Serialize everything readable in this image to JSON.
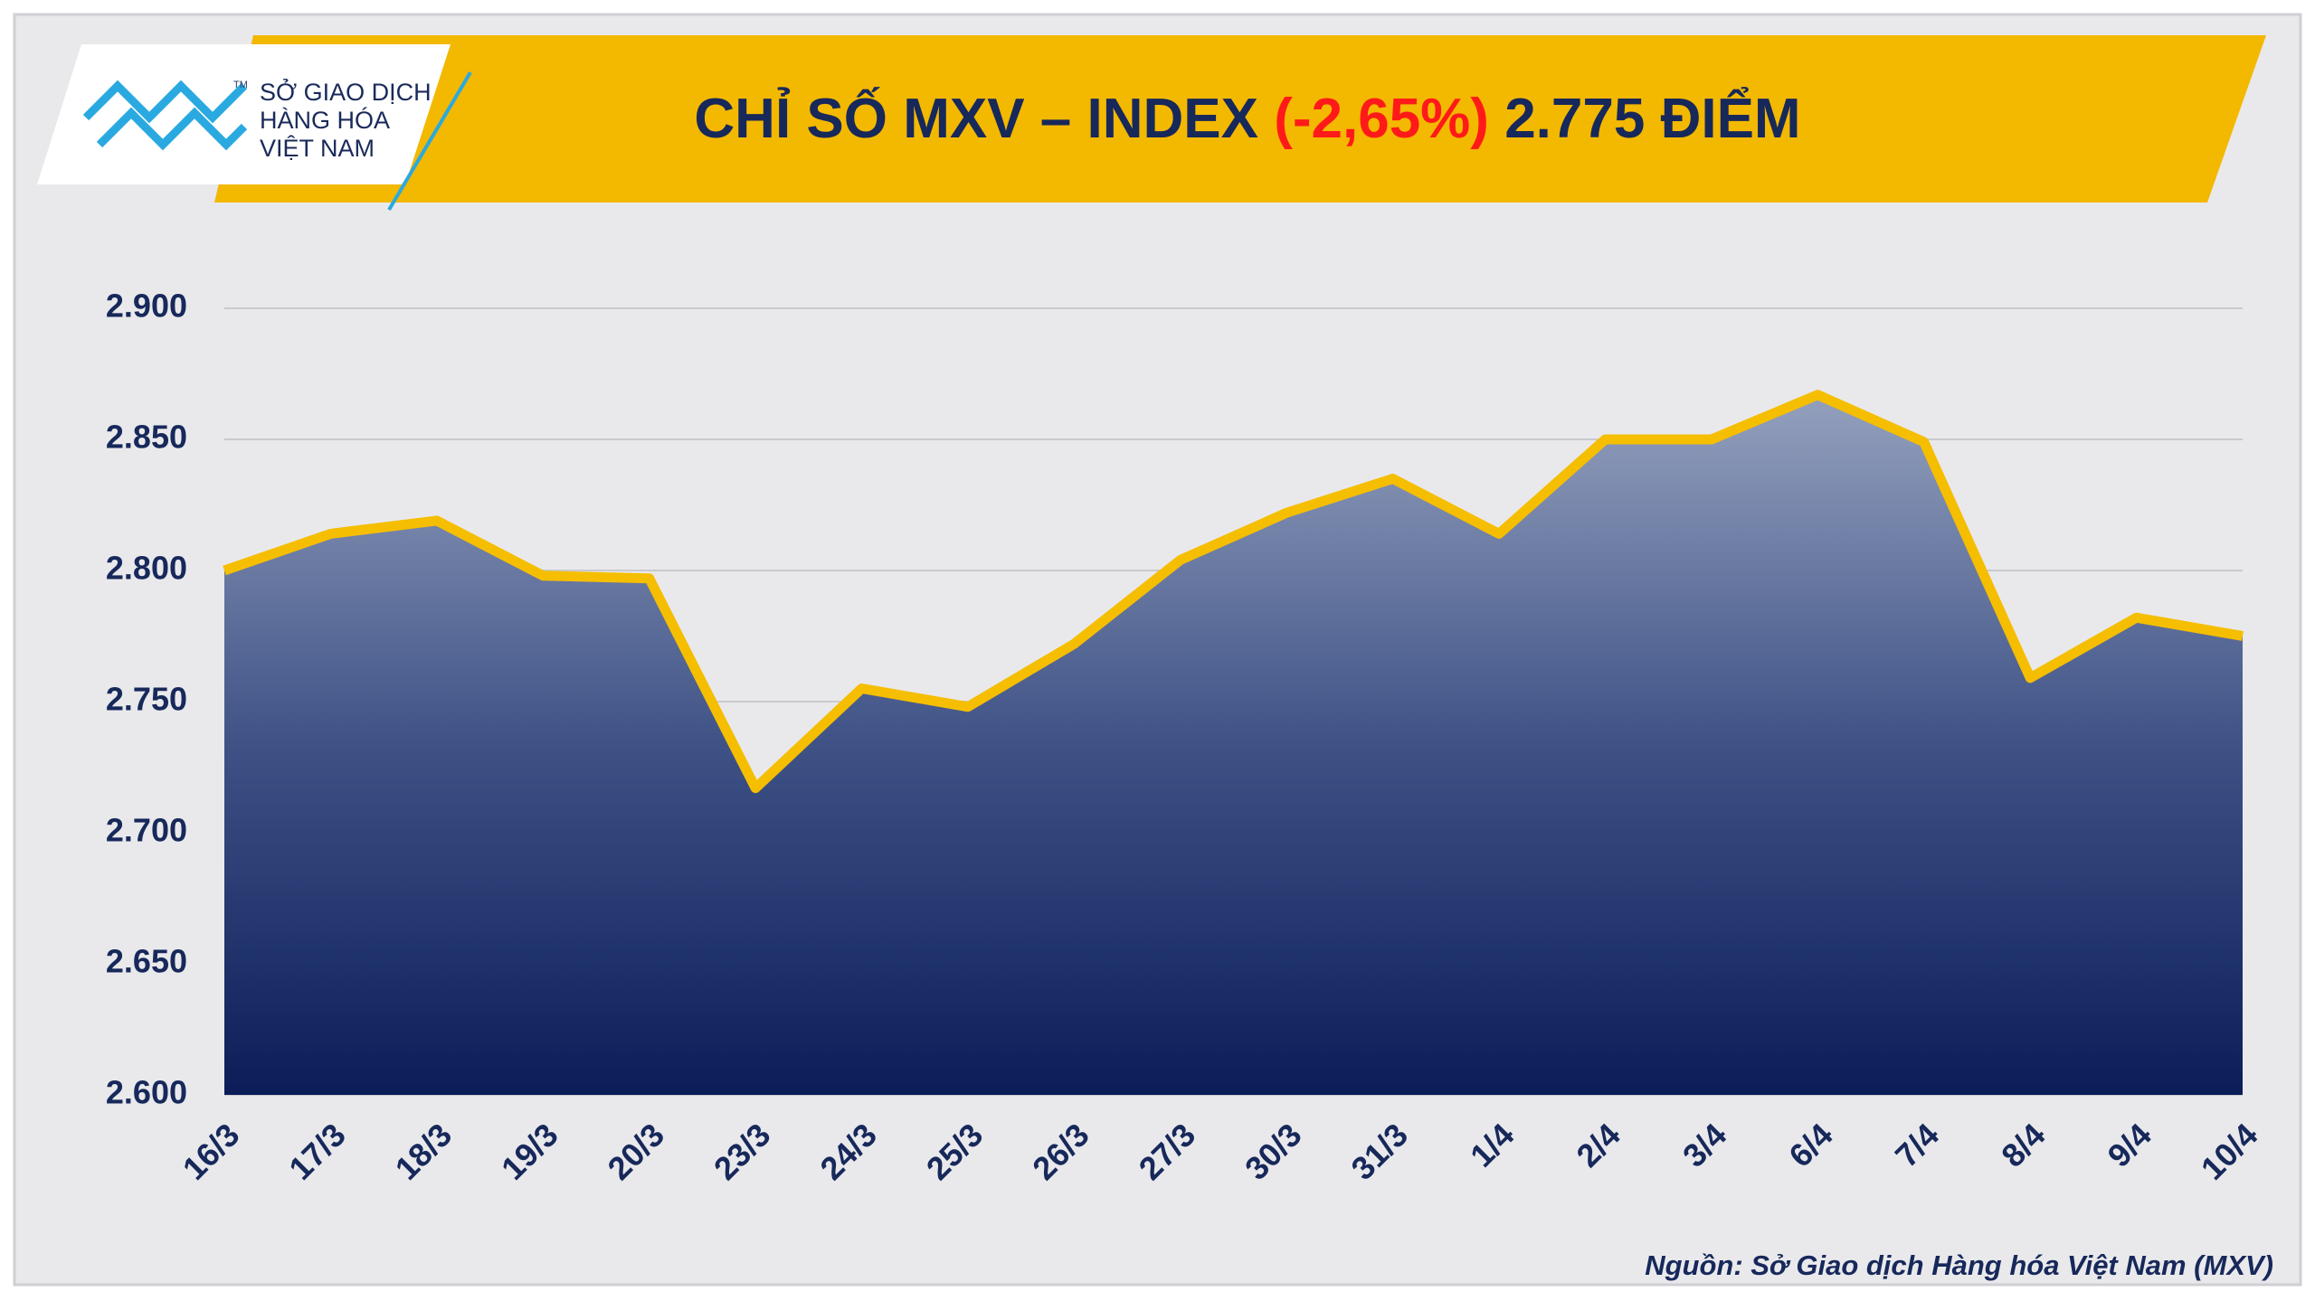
{
  "logo": {
    "lines": [
      "SỞ GIAO DỊCH",
      "HÀNG HÓA",
      "VIỆT NAM"
    ],
    "mark": "TM"
  },
  "chart_data": {
    "type": "area",
    "title": "CHỈ SỐ MXV – INDEX",
    "title_change": "(-2,65%)",
    "title_value": "2.775 ĐIỂM",
    "categories": [
      "16/3",
      "17/3",
      "18/3",
      "19/3",
      "20/3",
      "23/3",
      "24/3",
      "25/3",
      "26/3",
      "27/3",
      "30/3",
      "31/3",
      "1/4",
      "2/4",
      "3/4",
      "6/4",
      "7/4",
      "8/4",
      "9/4",
      "10/4"
    ],
    "values": [
      2800,
      2814,
      2819,
      2798,
      2797,
      2717,
      2755,
      2748,
      2772,
      2804,
      2822,
      2835,
      2814,
      2850,
      2850,
      2867,
      2849,
      2759,
      2782,
      2775
    ],
    "color": "#f5be00",
    "ylim": [
      2600,
      2900
    ],
    "yticks": [
      {
        "value": 2600,
        "label": "2.600"
      },
      {
        "value": 2650,
        "label": "2.650"
      },
      {
        "value": 2700,
        "label": "2.700"
      },
      {
        "value": 2750,
        "label": "2.750"
      },
      {
        "value": 2800,
        "label": "2.800"
      },
      {
        "value": 2850,
        "label": "2.850"
      },
      {
        "value": 2900,
        "label": "2.900"
      }
    ],
    "grid": true
  },
  "source": "Nguồn: Sở Giao dịch Hàng hóa Việt Nam (MXV)"
}
